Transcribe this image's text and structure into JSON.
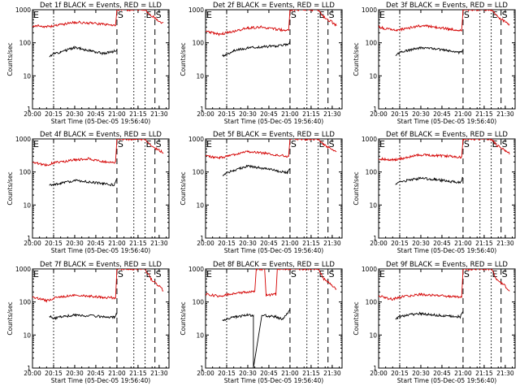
{
  "chart_data": [
    {
      "type": "line",
      "title": "Det 1f BLACK = Events, RED = LLD",
      "ylabel": "Counts/sec",
      "xlabel": "Start Time (05-Dec-05 19:56:40)",
      "x_ticks": [
        "20:00",
        "20:15",
        "20:30",
        "20:45",
        "21:00",
        "21:15",
        "21:30"
      ],
      "y_ticks": [
        "1",
        "10",
        "100",
        "1000"
      ],
      "y_scale": "log",
      "ylim": [
        1,
        1000
      ],
      "event_markers": [
        {
          "label": "E",
          "time": "20:00"
        },
        {
          "label": "S",
          "time": "21:00"
        },
        {
          "label": "E",
          "time": "21:20"
        },
        {
          "label": "S",
          "time": "21:27"
        }
      ],
      "series": [
        {
          "color": "#d40000",
          "x": [
            "20:00",
            "20:10",
            "20:15",
            "20:30",
            "20:40",
            "20:50",
            "20:59",
            "21:00",
            "21:20",
            "21:24",
            "21:30",
            "21:33"
          ],
          "y": [
            330,
            310,
            320,
            420,
            400,
            360,
            330,
            1000,
            1000,
            700,
            460,
            380
          ]
        },
        {
          "color": "#000000",
          "x": [
            "20:12",
            "20:15",
            "20:20",
            "20:30",
            "20:40",
            "20:50",
            "20:58",
            "21:00"
          ],
          "y": [
            38,
            48,
            52,
            72,
            58,
            48,
            55,
            65
          ]
        }
      ]
    },
    {
      "type": "line",
      "title": "Det 2f BLACK = Events, RED = LLD",
      "ylabel": "Counts/sec",
      "xlabel": "Start Time (05-Dec-05 19:56:40)",
      "x_ticks": [
        "20:00",
        "20:15",
        "20:30",
        "20:45",
        "21:00",
        "21:15",
        "21:30"
      ],
      "y_ticks": [
        "1",
        "10",
        "100",
        "1000"
      ],
      "y_scale": "log",
      "ylim": [
        1,
        1000
      ],
      "event_markers": [
        {
          "label": "E",
          "time": "20:00"
        },
        {
          "label": "S",
          "time": "21:00"
        },
        {
          "label": "E",
          "time": "21:20"
        },
        {
          "label": "S",
          "time": "21:27"
        }
      ],
      "series": [
        {
          "color": "#d40000",
          "x": [
            "20:00",
            "20:10",
            "20:15",
            "20:30",
            "20:40",
            "20:50",
            "20:59",
            "21:00",
            "21:20",
            "21:24",
            "21:30",
            "21:33"
          ],
          "y": [
            220,
            180,
            200,
            280,
            300,
            260,
            230,
            1000,
            1000,
            600,
            420,
            330
          ]
        },
        {
          "color": "#000000",
          "x": [
            "20:12",
            "20:15",
            "20:20",
            "20:30",
            "20:40",
            "20:50",
            "20:58",
            "21:00"
          ],
          "y": [
            40,
            45,
            58,
            70,
            75,
            80,
            90,
            110
          ]
        }
      ]
    },
    {
      "type": "line",
      "title": "Det 3f BLACK = Events, RED = LLD",
      "ylabel": "Counts/sec",
      "xlabel": "Start Time (05-Dec-05 19:56:40)",
      "x_ticks": [
        "20:00",
        "20:15",
        "20:30",
        "20:45",
        "21:00",
        "21:15",
        "21:30"
      ],
      "y_ticks": [
        "1",
        "10",
        "100",
        "1000"
      ],
      "y_scale": "log",
      "ylim": [
        1,
        1000
      ],
      "event_markers": [
        {
          "label": "E",
          "time": "20:00"
        },
        {
          "label": "S",
          "time": "21:00"
        },
        {
          "label": "E",
          "time": "21:20"
        },
        {
          "label": "S",
          "time": "21:27"
        }
      ],
      "series": [
        {
          "color": "#d40000",
          "x": [
            "20:00",
            "20:10",
            "20:15",
            "20:30",
            "20:40",
            "20:50",
            "20:59",
            "21:00",
            "21:20",
            "21:24",
            "21:30",
            "21:33"
          ],
          "y": [
            300,
            240,
            250,
            330,
            300,
            260,
            230,
            1000,
            1000,
            650,
            430,
            350
          ]
        },
        {
          "color": "#000000",
          "x": [
            "20:12",
            "20:15",
            "20:20",
            "20:30",
            "20:40",
            "20:50",
            "20:58",
            "21:00"
          ],
          "y": [
            42,
            50,
            58,
            70,
            65,
            58,
            50,
            55
          ]
        }
      ]
    },
    {
      "type": "line",
      "title": "Det 4f BLACK = Events, RED = LLD",
      "ylabel": "Counts/sec",
      "xlabel": "Start Time (05-Dec-05 19:56:40)",
      "x_ticks": [
        "20:00",
        "20:15",
        "20:30",
        "20:45",
        "21:00",
        "21:15",
        "21:30"
      ],
      "y_ticks": [
        "1",
        "10",
        "100",
        "1000"
      ],
      "y_scale": "log",
      "ylim": [
        1,
        1000
      ],
      "event_markers": [
        {
          "label": "E",
          "time": "20:00"
        },
        {
          "label": "S",
          "time": "21:00"
        },
        {
          "label": "E",
          "time": "21:20"
        },
        {
          "label": "S",
          "time": "21:27"
        }
      ],
      "series": [
        {
          "color": "#d40000",
          "x": [
            "20:00",
            "20:10",
            "20:15",
            "20:30",
            "20:40",
            "20:50",
            "20:59",
            "21:00",
            "21:20",
            "21:24",
            "21:30",
            "21:33"
          ],
          "y": [
            200,
            160,
            190,
            230,
            250,
            210,
            200,
            1000,
            1000,
            620,
            450,
            380
          ]
        },
        {
          "color": "#000000",
          "x": [
            "20:12",
            "20:15",
            "20:20",
            "20:30",
            "20:40",
            "20:50",
            "20:58",
            "21:00"
          ],
          "y": [
            40,
            42,
            45,
            55,
            50,
            45,
            40,
            60
          ]
        }
      ]
    },
    {
      "type": "line",
      "title": "Det 5f BLACK = Events, RED = LLD",
      "ylabel": "Counts/sec",
      "xlabel": "Start Time (05-Dec-05 19:56:40)",
      "x_ticks": [
        "20:00",
        "20:15",
        "20:30",
        "20:45",
        "21:00",
        "21:15",
        "21:30"
      ],
      "y_ticks": [
        "1",
        "10",
        "100",
        "1000"
      ],
      "y_scale": "log",
      "ylim": [
        1,
        1000
      ],
      "event_markers": [
        {
          "label": "E",
          "time": "20:00"
        },
        {
          "label": "S",
          "time": "21:00"
        },
        {
          "label": "E",
          "time": "21:20"
        },
        {
          "label": "S",
          "time": "21:27"
        }
      ],
      "series": [
        {
          "color": "#d40000",
          "x": [
            "20:00",
            "20:10",
            "20:15",
            "20:30",
            "20:40",
            "20:50",
            "20:59",
            "21:00",
            "21:20",
            "21:24",
            "21:30",
            "21:33"
          ],
          "y": [
            300,
            270,
            290,
            420,
            380,
            330,
            300,
            1000,
            1000,
            680,
            470,
            400
          ]
        },
        {
          "color": "#000000",
          "x": [
            "20:12",
            "20:15",
            "20:20",
            "20:30",
            "20:40",
            "20:50",
            "20:58",
            "21:00"
          ],
          "y": [
            80,
            95,
            110,
            150,
            130,
            110,
            95,
            120
          ]
        }
      ]
    },
    {
      "type": "line",
      "title": "Det 6f BLACK = Events, RED = LLD",
      "ylabel": "Counts/sec",
      "xlabel": "Start Time (05-Dec-05 19:56:40)",
      "x_ticks": [
        "20:00",
        "20:15",
        "20:30",
        "20:45",
        "21:00",
        "21:15",
        "21:30"
      ],
      "y_ticks": [
        "1",
        "10",
        "100",
        "1000"
      ],
      "y_scale": "log",
      "ylim": [
        1,
        1000
      ],
      "event_markers": [
        {
          "label": "E",
          "time": "20:00"
        },
        {
          "label": "S",
          "time": "21:00"
        },
        {
          "label": "E",
          "time": "21:20"
        },
        {
          "label": "S",
          "time": "21:27"
        }
      ],
      "series": [
        {
          "color": "#d40000",
          "x": [
            "20:00",
            "20:10",
            "20:15",
            "20:30",
            "20:40",
            "20:50",
            "20:59",
            "21:00",
            "21:20",
            "21:24",
            "21:30",
            "21:33"
          ],
          "y": [
            250,
            230,
            250,
            330,
            320,
            300,
            280,
            1000,
            1000,
            640,
            450,
            370
          ]
        },
        {
          "color": "#000000",
          "x": [
            "20:12",
            "20:15",
            "20:20",
            "20:30",
            "20:40",
            "20:50",
            "20:58",
            "21:00"
          ],
          "y": [
            42,
            48,
            55,
            65,
            60,
            52,
            48,
            70
          ]
        }
      ]
    },
    {
      "type": "line",
      "title": "Det 7f BLACK = Events, RED = LLD",
      "ylabel": "Counts/sec",
      "xlabel": "Start Time (05-Dec-05 19:56:40)",
      "x_ticks": [
        "20:00",
        "20:15",
        "20:30",
        "20:45",
        "21:00",
        "21:15",
        "21:30"
      ],
      "y_ticks": [
        "1",
        "10",
        "100",
        "1000"
      ],
      "y_scale": "log",
      "ylim": [
        1,
        1000
      ],
      "event_markers": [
        {
          "label": "E",
          "time": "20:00"
        },
        {
          "label": "S",
          "time": "21:00"
        },
        {
          "label": "E",
          "time": "21:20"
        },
        {
          "label": "S",
          "time": "21:27"
        }
      ],
      "series": [
        {
          "color": "#d40000",
          "x": [
            "20:00",
            "20:10",
            "20:15",
            "20:30",
            "20:40",
            "20:50",
            "20:59",
            "21:00",
            "21:20",
            "21:24",
            "21:30",
            "21:33"
          ],
          "y": [
            140,
            110,
            130,
            160,
            150,
            140,
            130,
            1000,
            1000,
            500,
            300,
            220
          ]
        },
        {
          "color": "#000000",
          "x": [
            "20:12",
            "20:15",
            "20:20",
            "20:30",
            "20:40",
            "20:50",
            "20:58",
            "21:00"
          ],
          "y": [
            38,
            32,
            36,
            40,
            38,
            36,
            34,
            45
          ]
        }
      ]
    },
    {
      "type": "line",
      "title": "Det 8f BLACK = Events, RED = LLD",
      "ylabel": "Counts/sec",
      "xlabel": "Start Time (05-Dec-05 19:56:40)",
      "x_ticks": [
        "20:00",
        "20:15",
        "20:30",
        "20:45",
        "21:00",
        "21:15",
        "21:30"
      ],
      "y_ticks": [
        "1",
        "10",
        "100",
        "1000"
      ],
      "y_scale": "log",
      "ylim": [
        1,
        1000
      ],
      "event_markers": [
        {
          "label": "E",
          "time": "20:00"
        },
        {
          "label": "S",
          "time": "21:00"
        },
        {
          "label": "E",
          "time": "21:20"
        },
        {
          "label": "S",
          "time": "21:27"
        }
      ],
      "series": [
        {
          "color": "#d40000",
          "x": [
            "20:00",
            "20:10",
            "20:15",
            "20:30",
            "20:35",
            "20:36",
            "20:42",
            "20:43",
            "20:50",
            "20:51",
            "20:59",
            "21:00",
            "21:20",
            "21:24",
            "21:30",
            "21:33"
          ],
          "y": [
            170,
            150,
            170,
            200,
            210,
            1000,
            1000,
            160,
            170,
            1000,
            1000,
            1000,
            1000,
            500,
            320,
            250
          ]
        },
        {
          "color": "#000000",
          "x": [
            "20:12",
            "20:15",
            "20:20",
            "20:30",
            "20:34",
            "20:34",
            "20:40",
            "20:50",
            "20:55",
            "21:00"
          ],
          "y": [
            28,
            30,
            35,
            40,
            38,
            1,
            40,
            35,
            30,
            60
          ]
        }
      ]
    },
    {
      "type": "line",
      "title": "Det 9f BLACK = Events, RED = LLD",
      "ylabel": "Counts/sec",
      "xlabel": "Start Time (05-Dec-05 19:56:40)",
      "x_ticks": [
        "20:00",
        "20:15",
        "20:30",
        "20:45",
        "21:00",
        "21:15",
        "21:30"
      ],
      "y_ticks": [
        "1",
        "10",
        "100",
        "1000"
      ],
      "y_scale": "log",
      "ylim": [
        1,
        1000
      ],
      "event_markers": [
        {
          "label": "E",
          "time": "20:00"
        },
        {
          "label": "S",
          "time": "21:00"
        },
        {
          "label": "E",
          "time": "21:20"
        },
        {
          "label": "S",
          "time": "21:27"
        }
      ],
      "series": [
        {
          "color": "#d40000",
          "x": [
            "20:00",
            "20:10",
            "20:15",
            "20:30",
            "20:40",
            "20:50",
            "20:59",
            "21:00",
            "21:20",
            "21:24",
            "21:30",
            "21:33"
          ],
          "y": [
            150,
            120,
            140,
            170,
            160,
            150,
            140,
            1000,
            1000,
            480,
            300,
            220
          ]
        },
        {
          "color": "#000000",
          "x": [
            "20:12",
            "20:15",
            "20:20",
            "20:30",
            "20:40",
            "20:50",
            "20:58",
            "21:00"
          ],
          "y": [
            32,
            36,
            40,
            45,
            40,
            38,
            36,
            50
          ]
        }
      ]
    }
  ]
}
